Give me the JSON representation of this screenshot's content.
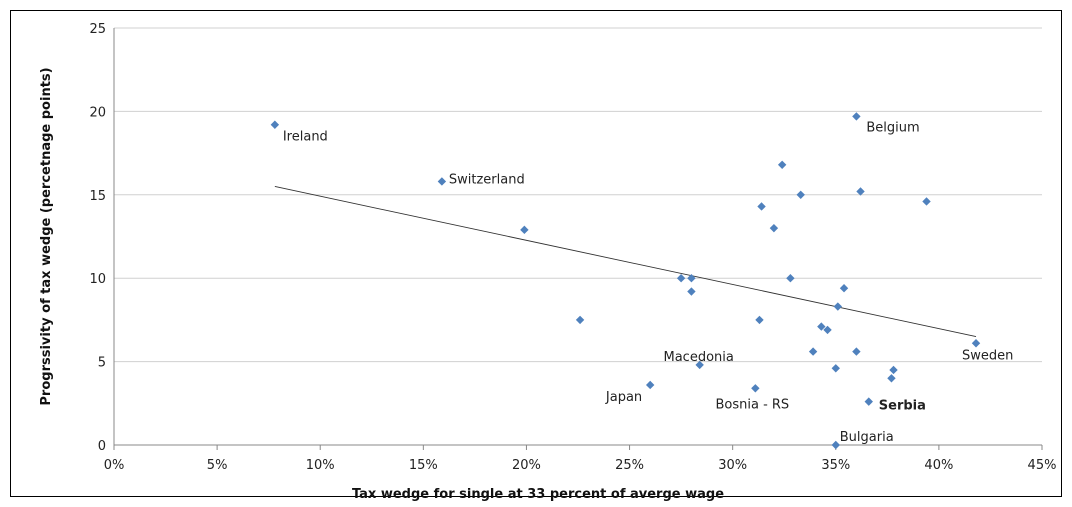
{
  "chart_data": {
    "type": "scatter",
    "title": "",
    "xlabel": "Tax wedge for single at 33 percent of averge wage",
    "ylabel": "Progrssivity of tax wedge (percetnage points)",
    "xlim": [
      0,
      45
    ],
    "ylim": [
      0,
      25
    ],
    "x_ticks": [
      "0%",
      "5%",
      "10%",
      "15%",
      "20%",
      "25%",
      "30%",
      "35%",
      "40%",
      "45%"
    ],
    "y_ticks": [
      "0",
      "5",
      "10",
      "15",
      "20",
      "25"
    ],
    "grid": "horizontal",
    "marker_color": "#4f81bd",
    "trendline": {
      "x": [
        7.8,
        41.8
      ],
      "y": [
        15.5,
        6.5
      ]
    },
    "points": [
      {
        "x": 7.8,
        "y": 19.2,
        "label": "Ireland",
        "bold": false
      },
      {
        "x": 15.9,
        "y": 15.8,
        "label": "Switzerland",
        "bold": false
      },
      {
        "x": 19.9,
        "y": 12.9,
        "label": "",
        "bold": false
      },
      {
        "x": 22.6,
        "y": 7.5,
        "label": "",
        "bold": false
      },
      {
        "x": 26.0,
        "y": 3.6,
        "label": "Japan",
        "bold": false
      },
      {
        "x": 27.5,
        "y": 10.0,
        "label": "",
        "bold": false
      },
      {
        "x": 28.0,
        "y": 10.0,
        "label": "",
        "bold": false
      },
      {
        "x": 28.0,
        "y": 9.2,
        "label": "",
        "bold": false
      },
      {
        "x": 28.4,
        "y": 4.8,
        "label": "Macedonia",
        "bold": false
      },
      {
        "x": 31.1,
        "y": 3.4,
        "label": "Bosnia - RS",
        "bold": false
      },
      {
        "x": 31.3,
        "y": 7.5,
        "label": "",
        "bold": false
      },
      {
        "x": 31.4,
        "y": 14.3,
        "label": "",
        "bold": false
      },
      {
        "x": 32.0,
        "y": 13.0,
        "label": "",
        "bold": false
      },
      {
        "x": 32.4,
        "y": 16.8,
        "label": "",
        "bold": false
      },
      {
        "x": 32.8,
        "y": 10.0,
        "label": "",
        "bold": false
      },
      {
        "x": 33.3,
        "y": 15.0,
        "label": "",
        "bold": false
      },
      {
        "x": 33.9,
        "y": 5.6,
        "label": "",
        "bold": false
      },
      {
        "x": 34.3,
        "y": 7.1,
        "label": "",
        "bold": false
      },
      {
        "x": 34.6,
        "y": 6.9,
        "label": "",
        "bold": false
      },
      {
        "x": 35.0,
        "y": 4.6,
        "label": "",
        "bold": false
      },
      {
        "x": 35.1,
        "y": 8.3,
        "label": "",
        "bold": false
      },
      {
        "x": 35.0,
        "y": 0.0,
        "label": "Bulgaria",
        "bold": false
      },
      {
        "x": 35.4,
        "y": 9.4,
        "label": "",
        "bold": false
      },
      {
        "x": 36.0,
        "y": 19.7,
        "label": "Belgium",
        "bold": false
      },
      {
        "x": 36.0,
        "y": 5.6,
        "label": "",
        "bold": false
      },
      {
        "x": 36.2,
        "y": 15.2,
        "label": "",
        "bold": false
      },
      {
        "x": 36.6,
        "y": 2.6,
        "label": "Serbia",
        "bold": true
      },
      {
        "x": 37.8,
        "y": 4.5,
        "label": "",
        "bold": false
      },
      {
        "x": 37.7,
        "y": 4.0,
        "label": "",
        "bold": false
      },
      {
        "x": 39.4,
        "y": 14.6,
        "label": "",
        "bold": false
      },
      {
        "x": 41.8,
        "y": 6.1,
        "label": "Sweden",
        "bold": false
      }
    ]
  }
}
